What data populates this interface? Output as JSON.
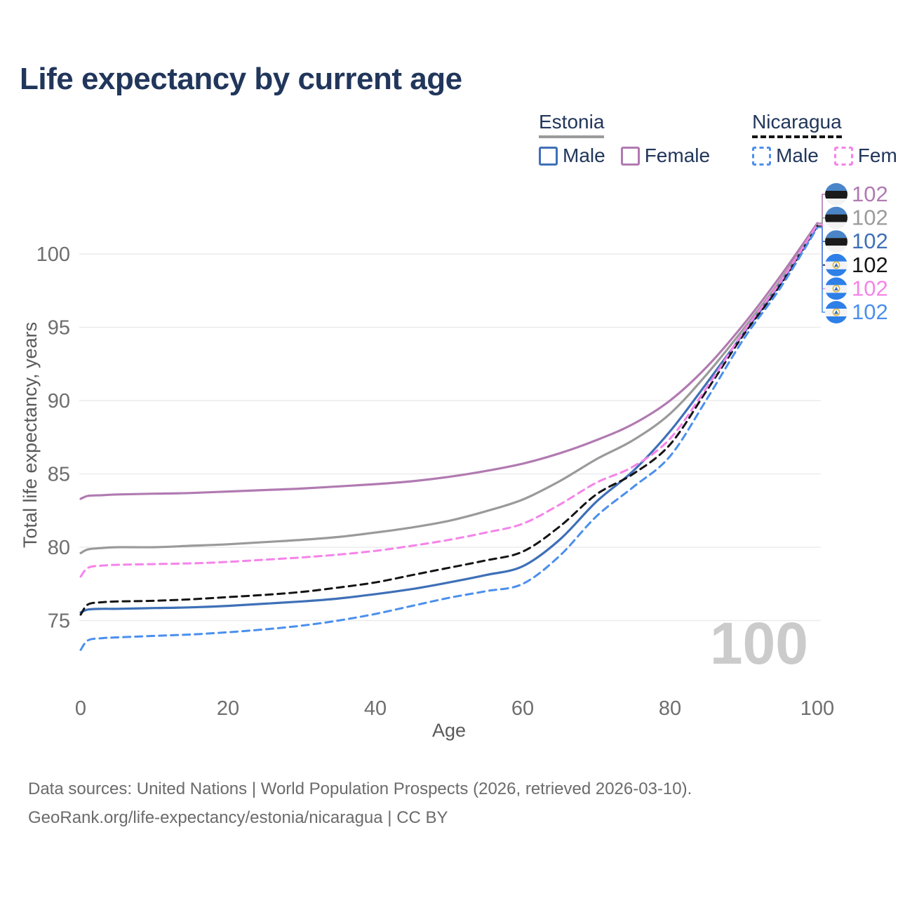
{
  "title": "Life expectancy by current age",
  "legend": {
    "groups": [
      {
        "country": "Estonia",
        "items": [
          {
            "label": "Male"
          },
          {
            "label": "Female"
          }
        ]
      },
      {
        "country": "Nicaragua",
        "items": [
          {
            "label": "Male"
          },
          {
            "label": "Female"
          }
        ]
      }
    ]
  },
  "chart_data": {
    "type": "line",
    "title": "Life expectancy by current age",
    "xlabel": "Age",
    "ylabel": "Total life expectancy, years",
    "x_ticks": [
      0,
      20,
      40,
      60,
      80,
      100
    ],
    "y_ticks": [
      75,
      80,
      85,
      90,
      95,
      100
    ],
    "xlim": [
      0,
      100
    ],
    "ylim": [
      72,
      103
    ],
    "grid": "horizontal",
    "legend_position": "top-right",
    "watermark_age": "100",
    "ages": [
      0,
      1,
      3,
      5,
      10,
      15,
      20,
      25,
      30,
      35,
      40,
      45,
      50,
      55,
      60,
      65,
      70,
      75,
      80,
      85,
      90,
      95,
      100
    ],
    "series": [
      {
        "name": "Estonia Female",
        "country": "Estonia",
        "sex": "Female",
        "line_style": "solid",
        "color": "#b17ab1",
        "flag": "estonia-flag-icon",
        "end_label": "102",
        "values": [
          83.3,
          83.5,
          83.55,
          83.6,
          83.65,
          83.7,
          83.8,
          83.9,
          84.0,
          84.15,
          84.3,
          84.5,
          84.8,
          85.2,
          85.7,
          86.4,
          87.3,
          88.4,
          90.0,
          92.3,
          95.2,
          98.5,
          102.1
        ]
      },
      {
        "name": "Estonia",
        "country": "Estonia",
        "sex": "Both",
        "line_style": "solid",
        "color": "#9a9a9a",
        "flag": "estonia-flag-icon",
        "end_label": "102",
        "values": [
          79.6,
          79.85,
          79.95,
          80.0,
          80.0,
          80.1,
          80.2,
          80.35,
          80.5,
          80.7,
          81.0,
          81.35,
          81.8,
          82.45,
          83.25,
          84.5,
          86.0,
          87.3,
          89.1,
          91.8,
          94.9,
          98.2,
          102.0
        ]
      },
      {
        "name": "Estonia Male",
        "country": "Estonia",
        "sex": "Male",
        "line_style": "solid",
        "color": "#3e70b7",
        "flag": "estonia-flag-icon",
        "end_label": "102",
        "values": [
          75.55,
          75.75,
          75.8,
          75.8,
          75.85,
          75.9,
          76.0,
          76.15,
          76.3,
          76.5,
          76.8,
          77.15,
          77.6,
          78.1,
          78.7,
          80.5,
          83.1,
          85.2,
          87.9,
          91.2,
          94.6,
          98.0,
          101.9
        ]
      },
      {
        "name": "Nicaragua",
        "country": "Nicaragua",
        "sex": "Both",
        "line_style": "dashed",
        "color": "#141414",
        "flag": "nicaragua-flag-icon",
        "end_label": "102",
        "values": [
          75.4,
          76.1,
          76.25,
          76.3,
          76.35,
          76.45,
          76.6,
          76.75,
          76.95,
          77.25,
          77.6,
          78.1,
          78.6,
          79.1,
          79.7,
          81.4,
          83.6,
          85.0,
          87.0,
          90.7,
          94.5,
          97.9,
          101.9
        ]
      },
      {
        "name": "Nicaragua Female",
        "country": "Nicaragua",
        "sex": "Female",
        "line_style": "dashed",
        "color": "#f583ea",
        "flag": "nicaragua-flag-icon",
        "end_label": "102",
        "values": [
          78.0,
          78.6,
          78.75,
          78.8,
          78.85,
          78.9,
          79.0,
          79.15,
          79.3,
          79.5,
          79.75,
          80.1,
          80.5,
          81.0,
          81.6,
          82.9,
          84.4,
          85.5,
          87.4,
          90.9,
          94.7,
          98.1,
          102.0
        ]
      },
      {
        "name": "Nicaragua Male",
        "country": "Nicaragua",
        "sex": "Male",
        "line_style": "dashed",
        "color": "#4b8fee",
        "flag": "nicaragua-flag-icon",
        "end_label": "102",
        "values": [
          73.0,
          73.65,
          73.8,
          73.85,
          73.95,
          74.05,
          74.2,
          74.4,
          74.65,
          75.0,
          75.45,
          76.0,
          76.55,
          77.0,
          77.5,
          79.4,
          82.1,
          84.1,
          86.2,
          90.1,
          94.2,
          97.7,
          101.8
        ]
      }
    ]
  },
  "footer": {
    "line1": "Data sources: United Nations | World Population Prospects (2026, retrieved 2026-03-10).",
    "line2": "GeoRank.org/life-expectancy/estonia/nicaragua | CC BY"
  }
}
